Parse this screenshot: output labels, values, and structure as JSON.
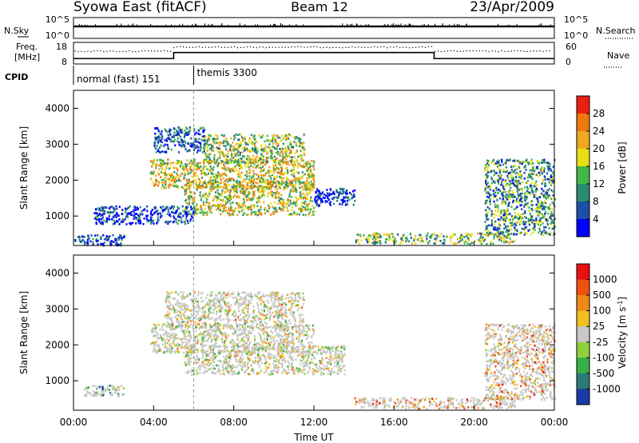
{
  "header": {
    "station": "Syowa East (fitACF)",
    "beam": "Beam 12",
    "date": "23/Apr/2009"
  },
  "nsky_panel": {
    "left_label": "N.Sky",
    "left_ticks": [
      "10^5",
      "10^0"
    ],
    "right_label": "N.Search",
    "right_ticks": [
      "10^5",
      "10^0"
    ]
  },
  "freq_panel": {
    "left_label_line1": "Freq.",
    "left_label_line2": "[MHz]",
    "left_ticks": [
      "18",
      "8"
    ],
    "right_label": "Nave",
    "right_ticks": [
      "60",
      "0"
    ],
    "freq_steps": [
      {
        "from_hour": 0,
        "to_hour": 5,
        "value_mhz": 10.5
      },
      {
        "from_hour": 5,
        "to_hour": 18,
        "value_mhz": 13.3
      },
      {
        "from_hour": 18,
        "to_hour": 24,
        "value_mhz": 10.5
      }
    ]
  },
  "cpid_panel": {
    "label": "CPID",
    "modes": [
      {
        "name": "normal (fast) 151",
        "start_hour": 0
      },
      {
        "name": "themis 3300",
        "start_hour": 6
      }
    ]
  },
  "chart_data": [
    {
      "type": "heatmap",
      "panel": "power",
      "ylabel": "Slant Range [km]",
      "xlabel": "",
      "ylim": [
        180,
        4500
      ],
      "yticks": [
        "1000",
        "2000",
        "3000",
        "4000"
      ],
      "colorbar_label": "Power [dB]",
      "colorbar_ticks": [
        "4",
        "8",
        "12",
        "16",
        "20",
        "24",
        "28"
      ],
      "colorbar_colors": [
        "#0000ff",
        "#1c4fa8",
        "#2a8c70",
        "#43b54a",
        "#e6e015",
        "#f0a820",
        "#f07810",
        "#e82010"
      ],
      "regions": [
        {
          "x": [
            3.8,
            12.0
          ],
          "y": [
            1800,
            2600
          ],
          "level": 0.6
        },
        {
          "x": [
            5.5,
            12.0
          ],
          "y": [
            1050,
            2000
          ],
          "level": 0.55
        },
        {
          "x": [
            6.5,
            11.5
          ],
          "y": [
            2500,
            3300
          ],
          "level": 0.5
        },
        {
          "x": [
            4.0,
            6.5
          ],
          "y": [
            2800,
            3500
          ],
          "level": 0.2
        },
        {
          "x": [
            0.0,
            2.5
          ],
          "y": [
            200,
            500
          ],
          "level": 0.15
        },
        {
          "x": [
            1.0,
            6.0
          ],
          "y": [
            800,
            1300
          ],
          "level": 0.15
        },
        {
          "x": [
            14.0,
            22.0
          ],
          "y": [
            250,
            550
          ],
          "level": 0.45
        },
        {
          "x": [
            20.5,
            24.0
          ],
          "y": [
            500,
            2600
          ],
          "level": 0.35
        },
        {
          "x": [
            12.0,
            14.0
          ],
          "y": [
            1300,
            1800
          ],
          "level": 0.1
        }
      ]
    },
    {
      "type": "heatmap",
      "panel": "velocity",
      "ylabel": "Slant Range [km]",
      "xlabel": "Time UT",
      "ylim": [
        180,
        4500
      ],
      "yticks": [
        "1000",
        "2000",
        "3000",
        "4000"
      ],
      "xticks": [
        "00:00",
        "04:00",
        "08:00",
        "12:00",
        "16:00",
        "20:00",
        "00:00"
      ],
      "xtick_hours": [
        0,
        4,
        8,
        12,
        16,
        20,
        24
      ],
      "colorbar_label": "Velocity [m s",
      "colorbar_label_sup": "-1",
      "colorbar_label_end": "]",
      "colorbar_ticks": [
        "1000",
        "500",
        "100",
        "25",
        "-25",
        "-100",
        "-500",
        "-1000"
      ],
      "colorbar_colors": [
        "#1c3aa8",
        "#2a7a78",
        "#38b048",
        "#90d040",
        "#c8c8c8",
        "#f0c020",
        "#f08818",
        "#f05010",
        "#e81010"
      ],
      "regions": [
        {
          "x": [
            3.8,
            12.0
          ],
          "y": [
            1800,
            2600
          ],
          "level": 0.5
        },
        {
          "x": [
            5.5,
            13.5
          ],
          "y": [
            1200,
            2000
          ],
          "level": 0.5
        },
        {
          "x": [
            4.5,
            11.5
          ],
          "y": [
            2500,
            3500
          ],
          "level": 0.52
        },
        {
          "x": [
            0.5,
            2.5
          ],
          "y": [
            600,
            900
          ],
          "level": 0.3
        },
        {
          "x": [
            14.0,
            22.0
          ],
          "y": [
            250,
            550
          ],
          "level": 0.7
        },
        {
          "x": [
            20.5,
            24.0
          ],
          "y": [
            500,
            2600
          ],
          "level": 0.65
        }
      ]
    }
  ]
}
